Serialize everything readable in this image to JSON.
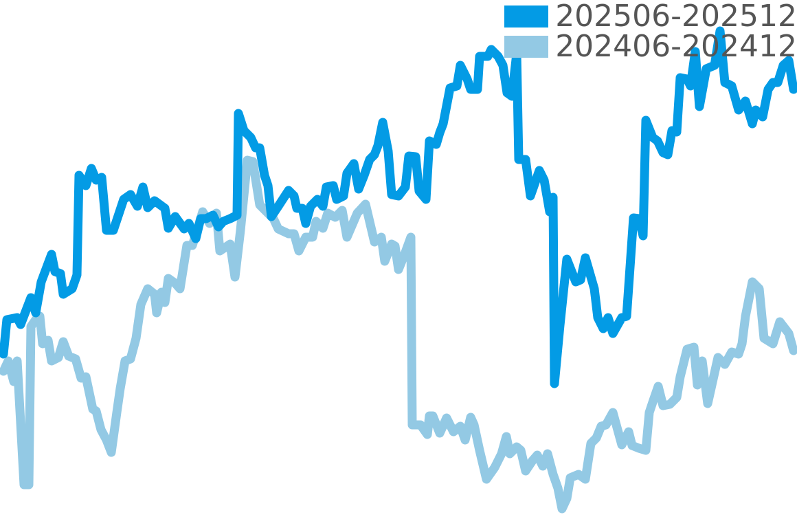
{
  "chart_data": {
    "type": "line",
    "title": "",
    "xlabel": "",
    "ylabel": "",
    "axes_visible": false,
    "grid": false,
    "legend_position": "top-right",
    "xlim": [
      0,
      116
    ],
    "ylim": [
      0,
      76.8
    ],
    "series": [
      {
        "name": "202506-202512",
        "color": "#039be5",
        "points": [
          [
            0.5,
            25.3
          ],
          [
            1,
            30.3
          ],
          [
            2.5,
            30.6
          ],
          [
            3,
            29.6
          ],
          [
            4.5,
            33.5
          ],
          [
            5.2,
            31.3
          ],
          [
            6,
            35.8
          ],
          [
            7.5,
            39.8
          ],
          [
            8,
            37.3
          ],
          [
            8.8,
            37
          ],
          [
            9.2,
            34
          ],
          [
            10.5,
            34.8
          ],
          [
            11.2,
            36.8
          ],
          [
            11.5,
            51.3
          ],
          [
            12.5,
            49.8
          ],
          [
            13.3,
            52.3
          ],
          [
            14,
            50.6
          ],
          [
            14.8,
            51
          ],
          [
            15.5,
            43.3
          ],
          [
            16.5,
            43.3
          ],
          [
            17.5,
            46.3
          ],
          [
            18,
            47.8
          ],
          [
            19,
            48.5
          ],
          [
            20,
            46.8
          ],
          [
            20.8,
            49.6
          ],
          [
            21.5,
            46.6
          ],
          [
            22.5,
            47.6
          ],
          [
            24,
            46.5
          ],
          [
            24.5,
            43.6
          ],
          [
            25.5,
            45.3
          ],
          [
            26.8,
            43.5
          ],
          [
            27.5,
            44.3
          ],
          [
            28.5,
            42.1
          ],
          [
            29.2,
            45
          ],
          [
            30,
            45
          ],
          [
            31,
            45.5
          ],
          [
            31.8,
            43.8
          ],
          [
            32.5,
            44.6
          ],
          [
            33.5,
            45
          ],
          [
            34.5,
            45.5
          ],
          [
            34.7,
            60.3
          ],
          [
            35.5,
            57.8
          ],
          [
            36.5,
            56.8
          ],
          [
            37.2,
            55.3
          ],
          [
            37.8,
            55.3
          ],
          [
            38.5,
            51.3
          ],
          [
            39,
            49.8
          ],
          [
            39.5,
            45.3
          ],
          [
            40.5,
            46.8
          ],
          [
            42,
            49.1
          ],
          [
            42.8,
            48.3
          ],
          [
            43.2,
            46.5
          ],
          [
            44,
            46.5
          ],
          [
            44.5,
            44.3
          ],
          [
            45.2,
            46.8
          ],
          [
            46.2,
            47.8
          ],
          [
            47,
            46.8
          ],
          [
            47.5,
            49.6
          ],
          [
            48.5,
            49.8
          ],
          [
            49,
            47.8
          ],
          [
            50,
            48.3
          ],
          [
            50.5,
            51.6
          ],
          [
            51.5,
            53
          ],
          [
            52.2,
            49.3
          ],
          [
            53,
            51.3
          ],
          [
            53.8,
            53.6
          ],
          [
            54.5,
            54.3
          ],
          [
            55,
            55.6
          ],
          [
            55.7,
            59
          ],
          [
            56.5,
            54.8
          ],
          [
            57,
            48.5
          ],
          [
            58,
            48.3
          ],
          [
            59,
            49.6
          ],
          [
            59.5,
            54.1
          ],
          [
            60.5,
            54
          ],
          [
            61,
            49
          ],
          [
            62,
            47.8
          ],
          [
            62.5,
            56.3
          ],
          [
            63.5,
            55.8
          ],
          [
            64,
            57.5
          ],
          [
            64.5,
            58.8
          ],
          [
            65.5,
            64
          ],
          [
            66.5,
            64.3
          ],
          [
            67,
            67.3
          ],
          [
            68,
            65.3
          ],
          [
            68.5,
            63.8
          ],
          [
            69.5,
            63.8
          ],
          [
            69.8,
            68.6
          ],
          [
            71,
            68.6
          ],
          [
            71.5,
            69.6
          ],
          [
            72.5,
            68.6
          ],
          [
            73.2,
            67.3
          ],
          [
            73.8,
            63.3
          ],
          [
            74.5,
            62.8
          ],
          [
            75.2,
            69
          ],
          [
            75.5,
            53.6
          ],
          [
            76.5,
            53.6
          ],
          [
            77.2,
            48.3
          ],
          [
            78.5,
            52
          ],
          [
            79.2,
            50.6
          ],
          [
            80,
            46
          ],
          [
            80.5,
            48.1
          ],
          [
            80.7,
            21
          ],
          [
            81.5,
            29.5
          ],
          [
            82.5,
            39.1
          ],
          [
            83.8,
            35.8
          ],
          [
            84.5,
            36.1
          ],
          [
            85.2,
            39.3
          ],
          [
            86.5,
            34.8
          ],
          [
            87,
            30.6
          ],
          [
            87.8,
            29
          ],
          [
            88.5,
            30.6
          ],
          [
            89.2,
            28.3
          ],
          [
            90.5,
            30.6
          ],
          [
            91.2,
            30.8
          ],
          [
            92.2,
            45.1
          ],
          [
            93,
            45
          ],
          [
            93.6,
            42.5
          ],
          [
            94,
            59.3
          ],
          [
            95,
            56.8
          ],
          [
            95.7,
            56.3
          ],
          [
            96.5,
            54.6
          ],
          [
            97.2,
            54.3
          ],
          [
            97.8,
            57.8
          ],
          [
            98.5,
            57.6
          ],
          [
            99,
            65.5
          ],
          [
            100,
            65.3
          ],
          [
            100.5,
            64.3
          ],
          [
            101.2,
            69.3
          ],
          [
            101.8,
            61.3
          ],
          [
            102.8,
            66.8
          ],
          [
            104,
            67.3
          ],
          [
            104.8,
            72.3
          ],
          [
            105.5,
            64.8
          ],
          [
            106.5,
            64.3
          ],
          [
            107.5,
            60.8
          ],
          [
            108.5,
            62.1
          ],
          [
            109.5,
            58.8
          ],
          [
            110,
            60.8
          ],
          [
            111,
            59.8
          ],
          [
            111.8,
            63.8
          ],
          [
            112.5,
            64.8
          ],
          [
            113.2,
            64.8
          ],
          [
            114,
            67.3
          ],
          [
            114.8,
            68
          ],
          [
            115.5,
            63.8
          ]
        ]
      },
      {
        "name": "202406-202412",
        "color": "#93c9e4",
        "points": [
          [
            0.5,
            22.8
          ],
          [
            1.2,
            24.3
          ],
          [
            2,
            21.3
          ],
          [
            2.5,
            24.3
          ],
          [
            3.5,
            6.3
          ],
          [
            4.2,
            6.3
          ],
          [
            4.5,
            29.3
          ],
          [
            5.2,
            30.3
          ],
          [
            5.8,
            30.8
          ],
          [
            6.2,
            26.8
          ],
          [
            7,
            27.3
          ],
          [
            7.5,
            24.3
          ],
          [
            8.5,
            24.8
          ],
          [
            9.2,
            27.1
          ],
          [
            10,
            25
          ],
          [
            11,
            24.6
          ],
          [
            11.8,
            21.8
          ],
          [
            12.5,
            22
          ],
          [
            13.5,
            17.3
          ],
          [
            14,
            17
          ],
          [
            14.7,
            14.3
          ],
          [
            15.5,
            12.8
          ],
          [
            16.2,
            11
          ],
          [
            17,
            16.8
          ],
          [
            17.5,
            20.3
          ],
          [
            18.2,
            24.3
          ],
          [
            19,
            24.6
          ],
          [
            19.8,
            27.6
          ],
          [
            20.5,
            32.5
          ],
          [
            21.5,
            34.8
          ],
          [
            22.5,
            34
          ],
          [
            22.8,
            31.3
          ],
          [
            23.5,
            34.3
          ],
          [
            24,
            32.8
          ],
          [
            24.5,
            36.3
          ],
          [
            25.5,
            35.6
          ],
          [
            26.2,
            34.8
          ],
          [
            27.2,
            41.1
          ],
          [
            28,
            41.1
          ],
          [
            29.5,
            46
          ],
          [
            30.5,
            44.3
          ],
          [
            31.5,
            45.8
          ],
          [
            32,
            40.3
          ],
          [
            33.5,
            41.3
          ],
          [
            34.2,
            36.5
          ],
          [
            35,
            43.3
          ],
          [
            36,
            53.5
          ],
          [
            36.8,
            53.3
          ],
          [
            37.8,
            47
          ],
          [
            39,
            45.8
          ],
          [
            39.8,
            45
          ],
          [
            40.5,
            43.5
          ],
          [
            42,
            42.8
          ],
          [
            42.8,
            42.8
          ],
          [
            43.5,
            40.3
          ],
          [
            44.5,
            42.3
          ],
          [
            45.5,
            42.3
          ],
          [
            46,
            44.6
          ],
          [
            47,
            43.6
          ],
          [
            47.7,
            45.8
          ],
          [
            48.8,
            45.2
          ],
          [
            49.8,
            46.2
          ],
          [
            50.5,
            42.3
          ],
          [
            52,
            45.8
          ],
          [
            53.2,
            47.1
          ],
          [
            54.5,
            41.6
          ],
          [
            55.5,
            42.3
          ],
          [
            56,
            38.8
          ],
          [
            57,
            41.3
          ],
          [
            57.5,
            41
          ],
          [
            58,
            37.6
          ],
          [
            59,
            40.1
          ],
          [
            59.8,
            42.3
          ],
          [
            60,
            15
          ],
          [
            61.2,
            15
          ],
          [
            62.2,
            13.6
          ],
          [
            62.5,
            16.3
          ],
          [
            63,
            16.3
          ],
          [
            64,
            13.8
          ],
          [
            65,
            16
          ],
          [
            66,
            14
          ],
          [
            67,
            14.8
          ],
          [
            67.7,
            12.8
          ],
          [
            68.5,
            16.1
          ],
          [
            69,
            15
          ],
          [
            69.8,
            11.3
          ],
          [
            70.8,
            7.1
          ],
          [
            72,
            8.8
          ],
          [
            73,
            10.8
          ],
          [
            73.7,
            13.3
          ],
          [
            74.2,
            10.8
          ],
          [
            75.2,
            11.8
          ],
          [
            75.8,
            11.3
          ],
          [
            76.5,
            8.3
          ],
          [
            77.5,
            9.8
          ],
          [
            78.2,
            10.6
          ],
          [
            79,
            9
          ],
          [
            79.7,
            10.8
          ],
          [
            80.5,
            7.8
          ],
          [
            81.2,
            5.8
          ],
          [
            81.8,
            2.8
          ],
          [
            82.5,
            4.3
          ],
          [
            83,
            7.3
          ],
          [
            84.2,
            7.8
          ],
          [
            85.2,
            7.1
          ],
          [
            86,
            12.3
          ],
          [
            86.8,
            13.1
          ],
          [
            87.5,
            14.8
          ],
          [
            88.2,
            15
          ],
          [
            89.2,
            16.8
          ],
          [
            90.5,
            12.1
          ],
          [
            91.5,
            14
          ],
          [
            92,
            12
          ],
          [
            93,
            11.6
          ],
          [
            94,
            11.3
          ],
          [
            94.5,
            16.8
          ],
          [
            95,
            18.3
          ],
          [
            95.8,
            20.6
          ],
          [
            96.5,
            17.8
          ],
          [
            97.5,
            18
          ],
          [
            98.5,
            19
          ],
          [
            99,
            22
          ],
          [
            100,
            26
          ],
          [
            101,
            26.3
          ],
          [
            101.5,
            20.8
          ],
          [
            102.2,
            24.3
          ],
          [
            103,
            18.1
          ],
          [
            104.5,
            24.8
          ],
          [
            105.5,
            23.8
          ],
          [
            106.5,
            25.6
          ],
          [
            107.5,
            25.3
          ],
          [
            108,
            26.8
          ],
          [
            108.5,
            30.8
          ],
          [
            109.5,
            35.8
          ],
          [
            110.5,
            34.8
          ],
          [
            111.2,
            27.6
          ],
          [
            112.5,
            26.8
          ],
          [
            113.5,
            30
          ],
          [
            114.8,
            28.3
          ],
          [
            115.5,
            25.8
          ]
        ]
      }
    ]
  }
}
